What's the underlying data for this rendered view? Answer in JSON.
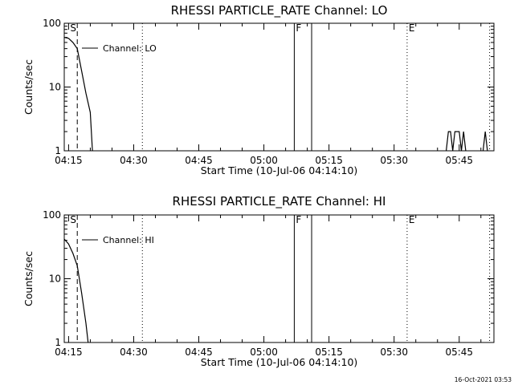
{
  "footer": {
    "timestamp": "16-Oct-2021 03:53"
  },
  "chart_data": [
    {
      "type": "line",
      "title": "RHESSI PARTICLE_RATE Channel: LO",
      "xlabel": "Start Time (10-Jul-06 04:14:10)",
      "ylabel": "Counts/sec",
      "yscale": "log",
      "ylim": [
        1,
        100
      ],
      "xlim": [
        "04:14",
        "05:53"
      ],
      "xticks": [
        "04:15",
        "04:30",
        "04:45",
        "05:00",
        "05:15",
        "05:30",
        "05:45"
      ],
      "yticks": [
        "1",
        "10",
        "100"
      ],
      "legend": {
        "label": "Channel: LO",
        "position": "top-left"
      },
      "markers": [
        {
          "label": "S",
          "time": "04:15",
          "style": "dashed"
        },
        {
          "label": "F",
          "time": "05:07",
          "style": "solid"
        },
        {
          "label": "E",
          "time": "05:33",
          "style": "dotted"
        }
      ],
      "event_lines": [
        {
          "time": "04:17",
          "style": "dashed"
        },
        {
          "time": "04:32",
          "style": "dotted"
        },
        {
          "time": "05:07",
          "style": "solid"
        },
        {
          "time": "05:11",
          "style": "solid"
        },
        {
          "time": "05:33",
          "style": "dotted"
        },
        {
          "time": "05:52",
          "style": "dotted"
        }
      ],
      "series": [
        {
          "segments": [
            [
              [
                "04:14",
                60
              ],
              [
                "04:15",
                58
              ],
              [
                "04:16",
                50
              ],
              [
                "04:17",
                40
              ],
              [
                "04:18",
                18
              ],
              [
                "04:19",
                8
              ],
              [
                "04:20",
                4
              ],
              [
                "04:20.5",
                1
              ]
            ],
            [
              [
                "05:42",
                1
              ],
              [
                "05:42.5",
                2
              ],
              [
                "05:43",
                2
              ],
              [
                "05:43.5",
                1
              ],
              [
                "05:44",
                2
              ],
              [
                "05:45",
                2
              ],
              [
                "05:45.5",
                1
              ],
              [
                "05:46",
                2
              ],
              [
                "05:46.5",
                1
              ]
            ],
            [
              [
                "05:50.5",
                1
              ],
              [
                "05:51",
                2
              ],
              [
                "05:51.5",
                1
              ]
            ]
          ]
        }
      ]
    },
    {
      "type": "line",
      "title": "RHESSI PARTICLE_RATE Channel: HI",
      "xlabel": "Start Time (10-Jul-06 04:14:10)",
      "ylabel": "Counts/sec",
      "yscale": "log",
      "ylim": [
        1,
        100
      ],
      "xlim": [
        "04:14",
        "05:53"
      ],
      "xticks": [
        "04:15",
        "04:30",
        "04:45",
        "05:00",
        "05:15",
        "05:30",
        "05:45"
      ],
      "yticks": [
        "1",
        "10",
        "100"
      ],
      "legend": {
        "label": "Channel: HI",
        "position": "top-left"
      },
      "markers": [
        {
          "label": "S",
          "time": "04:15",
          "style": "dashed"
        },
        {
          "label": "F",
          "time": "05:07",
          "style": "solid"
        },
        {
          "label": "E",
          "time": "05:33",
          "style": "dotted"
        }
      ],
      "event_lines": [
        {
          "time": "04:17",
          "style": "dashed"
        },
        {
          "time": "04:32",
          "style": "dotted"
        },
        {
          "time": "05:07",
          "style": "solid"
        },
        {
          "time": "05:11",
          "style": "solid"
        },
        {
          "time": "05:33",
          "style": "dotted"
        },
        {
          "time": "05:52",
          "style": "dotted"
        }
      ],
      "series": [
        {
          "segments": [
            [
              [
                "04:14",
                42
              ],
              [
                "04:15",
                35
              ],
              [
                "04:16",
                25
              ],
              [
                "04:17",
                16
              ],
              [
                "04:18",
                6
              ],
              [
                "04:19",
                2
              ],
              [
                "04:19.5",
                1
              ]
            ]
          ]
        }
      ]
    }
  ]
}
